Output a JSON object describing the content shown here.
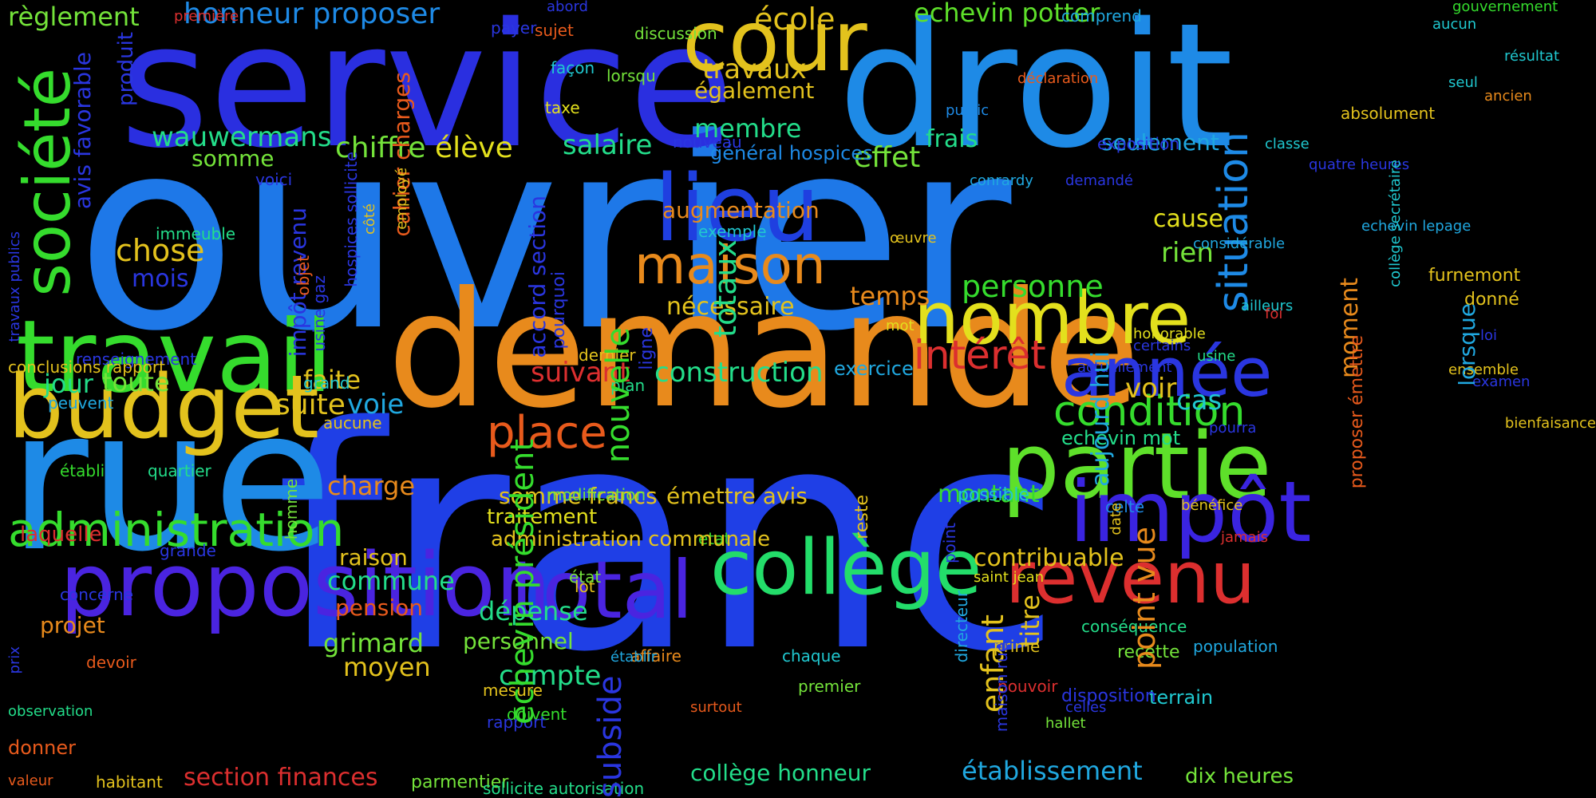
{
  "palette": {
    "background": "#000000",
    "blue": "#1f3fe0",
    "lightblue": "#1e8ae6",
    "orange": "#e88a1c",
    "yellow": "#e3c21d",
    "green": "#35dc2d",
    "lightgreen": "#74e33a",
    "teal": "#23dd8a",
    "cyan": "#20c8d0",
    "red": "#dc2f2f",
    "violet": "#4a24e0"
  },
  "words": [
    {
      "text": "ouvrier",
      "color": "#1e78e8"
    },
    {
      "text": "franc",
      "color": "#1f3fe6"
    },
    {
      "text": "service",
      "color": "#2a2fe0"
    },
    {
      "text": "droit",
      "color": "#1e8ae6"
    },
    {
      "text": "demande",
      "color": "#e88a1c"
    },
    {
      "text": "rue",
      "color": "#1e8ae6"
    },
    {
      "text": "cour",
      "color": "#e3c21d"
    },
    {
      "text": "société",
      "color": "#35dc2d"
    },
    {
      "text": "travail",
      "color": "#35dc2d"
    },
    {
      "text": "budget",
      "color": "#e3c21d"
    },
    {
      "text": "nombre",
      "color": "#e3e01d"
    },
    {
      "text": "année",
      "color": "#2a36e0"
    },
    {
      "text": "lieu",
      "color": "#1f3fe0"
    },
    {
      "text": "partie",
      "color": "#5ee02a"
    },
    {
      "text": "impôt",
      "color": "#3a24e0"
    },
    {
      "text": "collège",
      "color": "#23dd6a"
    },
    {
      "text": "revenu",
      "color": "#dc2f2f"
    },
    {
      "text": "total",
      "color": "#4a24e0"
    },
    {
      "text": "proposition",
      "color": "#4a24e0"
    },
    {
      "text": "administration",
      "color": "#35dc2d"
    },
    {
      "text": "maison",
      "color": "#e88a1c"
    },
    {
      "text": "condition",
      "color": "#35dc2d"
    },
    {
      "text": "intérêt",
      "color": "#dc2f2f"
    },
    {
      "text": "place",
      "color": "#e85a1c"
    },
    {
      "text": "situation",
      "color": "#1e8ae6"
    },
    {
      "text": "honneur proposer",
      "color": "#1e8ae6"
    },
    {
      "text": "école",
      "color": "#e3c21d"
    },
    {
      "text": "echevin potter",
      "color": "#5ee02a"
    },
    {
      "text": "règlement",
      "color": "#74e33a"
    },
    {
      "text": "travaux",
      "color": "#e3c21d"
    },
    {
      "text": "également",
      "color": "#e3c21d"
    },
    {
      "text": "membre",
      "color": "#23dd8a"
    },
    {
      "text": "effet",
      "color": "#74e33a"
    },
    {
      "text": "frais",
      "color": "#23dd8a"
    },
    {
      "text": "seulement",
      "color": "#20a8e0"
    },
    {
      "text": "wauwermans",
      "color": "#23dd8a"
    },
    {
      "text": "chiffre",
      "color": "#74e33a"
    },
    {
      "text": "élève",
      "color": "#e3e01d"
    },
    {
      "text": "salaire",
      "color": "#23dd8a"
    },
    {
      "text": "somme",
      "color": "#74e33a"
    },
    {
      "text": "général hospices",
      "color": "#1e8ae6"
    },
    {
      "text": "augmentation",
      "color": "#e88a1c"
    },
    {
      "text": "cause",
      "color": "#e3e01d"
    },
    {
      "text": "rien",
      "color": "#74e33a"
    },
    {
      "text": "chose",
      "color": "#e3c21d"
    },
    {
      "text": "mois",
      "color": "#2a36e0"
    },
    {
      "text": "temps",
      "color": "#e88a1c"
    },
    {
      "text": "personne",
      "color": "#35dc2d"
    },
    {
      "text": "nécessaire",
      "color": "#e3c21d"
    },
    {
      "text": "construction",
      "color": "#23dd8a"
    },
    {
      "text": "suivant",
      "color": "#dc2f2f"
    },
    {
      "text": "faite",
      "color": "#e3c21d"
    },
    {
      "text": "jour",
      "color": "#23dd8a"
    },
    {
      "text": "toute",
      "color": "#74e33a"
    },
    {
      "text": "suite",
      "color": "#e3c21d"
    },
    {
      "text": "voie",
      "color": "#20a8e0"
    },
    {
      "text": "voir",
      "color": "#e3c21d"
    },
    {
      "text": "cas",
      "color": "#20c8d0"
    },
    {
      "text": "charge",
      "color": "#e88a1c"
    },
    {
      "text": "somme francs",
      "color": "#e3c21d"
    },
    {
      "text": "émettre avis",
      "color": "#e3c21d"
    },
    {
      "text": "montant",
      "color": "#35dc2d"
    },
    {
      "text": "contribuable",
      "color": "#e3c21d"
    },
    {
      "text": "raison",
      "color": "#e3c21d"
    },
    {
      "text": "commune",
      "color": "#23dd8a"
    },
    {
      "text": "pension",
      "color": "#e85a1c"
    },
    {
      "text": "dépense",
      "color": "#23dd8a"
    },
    {
      "text": "projet",
      "color": "#e88a1c"
    },
    {
      "text": "grimard",
      "color": "#74e33a"
    },
    {
      "text": "personnel",
      "color": "#74e33a"
    },
    {
      "text": "moyen",
      "color": "#e3c21d"
    },
    {
      "text": "compte",
      "color": "#23dd8a"
    },
    {
      "text": "section finances",
      "color": "#dc2f2f"
    },
    {
      "text": "collège honneur",
      "color": "#23dd8a"
    },
    {
      "text": "établissement",
      "color": "#20a8e0"
    },
    {
      "text": "dix heures",
      "color": "#74e33a"
    },
    {
      "text": "terrain",
      "color": "#20c8d0"
    },
    {
      "text": "echevin mot",
      "color": "#23dd8a"
    },
    {
      "text": "laquelle",
      "color": "#dc2f2f"
    },
    {
      "text": "donner",
      "color": "#e85a1c"
    },
    {
      "text": "parmentier",
      "color": "#74e33a"
    },
    {
      "text": "sollicite autorisation",
      "color": "#23dd8a"
    },
    {
      "text": "exercice",
      "color": "#20a8e0"
    },
    {
      "text": "possible",
      "color": "#20c8d0"
    },
    {
      "text": "celte",
      "color": "#1e8ae6"
    },
    {
      "text": "bénéfice",
      "color": "#e3c21d"
    },
    {
      "text": "jamais",
      "color": "#dc2f2f"
    },
    {
      "text": "conséquence",
      "color": "#23dd8a"
    },
    {
      "text": "recette",
      "color": "#74e33a"
    },
    {
      "text": "prime",
      "color": "#e3c21d"
    },
    {
      "text": "population",
      "color": "#20a8e0"
    },
    {
      "text": "disposition",
      "color": "#2a36e0"
    },
    {
      "text": "celles",
      "color": "#2a36e0"
    },
    {
      "text": "hallet",
      "color": "#74e33a"
    },
    {
      "text": "saint jean",
      "color": "#e3e01d"
    },
    {
      "text": "pouvoir",
      "color": "#dc2f2f"
    },
    {
      "text": "premier",
      "color": "#74e33a"
    },
    {
      "text": "chaque",
      "color": "#20c8d0"
    },
    {
      "text": "affaire",
      "color": "#e88a1c"
    },
    {
      "text": "surtout",
      "color": "#e85a1c"
    },
    {
      "text": "doivent",
      "color": "#35dc2d"
    },
    {
      "text": "rapport",
      "color": "#2a36e0"
    },
    {
      "text": "mesure",
      "color": "#e3c21d"
    },
    {
      "text": "établir",
      "color": "#20a8e0"
    },
    {
      "text": "lot",
      "color": "#e3c21d"
    },
    {
      "text": "état",
      "color": "#74e33a"
    },
    {
      "text": "etat",
      "color": "#35dc2d"
    },
    {
      "text": "traitement",
      "color": "#e3e01d"
    },
    {
      "text": "administration communale",
      "color": "#e3c21d"
    },
    {
      "text": "modification",
      "color": "#74e33a"
    },
    {
      "text": "grande",
      "color": "#2a36e0"
    },
    {
      "text": "quartier",
      "color": "#23dd8a"
    },
    {
      "text": "établi",
      "color": "#35dc2d"
    },
    {
      "text": "concerne",
      "color": "#2a36e0"
    },
    {
      "text": "devoir",
      "color": "#e85a1c"
    },
    {
      "text": "observation",
      "color": "#23dd8a"
    },
    {
      "text": "valeur",
      "color": "#e85a1c"
    },
    {
      "text": "habitant",
      "color": "#e3c21d"
    },
    {
      "text": "prix",
      "color": "#2a36e0"
    },
    {
      "text": "renseignement",
      "color": "#2a36e0"
    },
    {
      "text": "conclusions rapport",
      "color": "#e3c21d"
    },
    {
      "text": "peuvent",
      "color": "#20a8e0"
    },
    {
      "text": "aucune",
      "color": "#e3c21d"
    },
    {
      "text": "grand",
      "color": "#20c8d0"
    },
    {
      "text": "dernier",
      "color": "#e3c21d"
    },
    {
      "text": "plan",
      "color": "#23dd8a"
    },
    {
      "text": "immeuble",
      "color": "#23dd8a"
    },
    {
      "text": "voici",
      "color": "#2a36e0"
    },
    {
      "text": "exemple",
      "color": "#20c8d0"
    },
    {
      "text": "nouveau",
      "color": "#2a36e0"
    },
    {
      "text": "taxe",
      "color": "#e3e01d"
    },
    {
      "text": "lorsqu",
      "color": "#74e33a"
    },
    {
      "text": "façon",
      "color": "#20c8d0"
    },
    {
      "text": "discussion",
      "color": "#74e33a"
    },
    {
      "text": "sujet",
      "color": "#e85a1c"
    },
    {
      "text": "payer",
      "color": "#2a36e0"
    },
    {
      "text": "abord",
      "color": "#2a36e0"
    },
    {
      "text": "première",
      "color": "#dc2f2f"
    },
    {
      "text": "comprend",
      "color": "#20a8e0"
    },
    {
      "text": "gouvernement",
      "color": "#35dc2d"
    },
    {
      "text": "aucun",
      "color": "#20c8d0"
    },
    {
      "text": "résultat",
      "color": "#20c8d0"
    },
    {
      "text": "seul",
      "color": "#20c8d0"
    },
    {
      "text": "ancien",
      "color": "#e88a1c"
    },
    {
      "text": "déclaration",
      "color": "#e85a1c"
    },
    {
      "text": "public",
      "color": "#1e8ae6"
    },
    {
      "text": "absolument",
      "color": "#e3c21d"
    },
    {
      "text": "exposition",
      "color": "#2a36e0"
    },
    {
      "text": "classe",
      "color": "#20c8d0"
    },
    {
      "text": "quatre heures",
      "color": "#2a36e0"
    },
    {
      "text": "demandé",
      "color": "#2a36e0"
    },
    {
      "text": "conrardy",
      "color": "#20a8e0"
    },
    {
      "text": "echevin lepage",
      "color": "#20a8e0"
    },
    {
      "text": "œuvre",
      "color": "#e3c21d"
    },
    {
      "text": "considérable",
      "color": "#20a8e0"
    },
    {
      "text": "mot",
      "color": "#e3e01d"
    },
    {
      "text": "honorable",
      "color": "#e3e01d"
    },
    {
      "text": "certains",
      "color": "#2a36e0"
    },
    {
      "text": "usine",
      "color": "#23dd8a"
    },
    {
      "text": "actuellement",
      "color": "#2a36e0"
    },
    {
      "text": "ensemble",
      "color": "#e3c21d"
    },
    {
      "text": "examen",
      "color": "#2a36e0"
    },
    {
      "text": "bienfaisance",
      "color": "#e3c21d"
    },
    {
      "text": "pourra",
      "color": "#2a36e0"
    },
    {
      "text": "ailleurs",
      "color": "#20c8d0"
    },
    {
      "text": "foi",
      "color": "#dc2f2f"
    },
    {
      "text": "furnemont",
      "color": "#e3c21d"
    },
    {
      "text": "donné",
      "color": "#e3c21d"
    },
    {
      "text": "loi",
      "color": "#2a36e0"
    },
    {
      "text": "lorsque",
      "color": "#20a8e0"
    },
    {
      "text": "moment",
      "color": "#e88a1c"
    },
    {
      "text": "aujourd hui",
      "color": "#20a8e0"
    },
    {
      "text": "point vue",
      "color": "#e88a1c"
    },
    {
      "text": "enfant",
      "color": "#e3c21d"
    },
    {
      "text": "titre",
      "color": "#e3c21d"
    },
    {
      "text": "subside",
      "color": "#2a36e0"
    },
    {
      "text": "totaux",
      "color": "#23dd8a"
    },
    {
      "text": "nouvelle",
      "color": "#35dc2d"
    },
    {
      "text": "echevin président",
      "color": "#35dc2d"
    },
    {
      "text": "accord section",
      "color": "#2a36e0"
    },
    {
      "text": "pourquoi",
      "color": "#2a36e0"
    },
    {
      "text": "ligne",
      "color": "#2a36e0"
    },
    {
      "text": "reste",
      "color": "#e3c21d"
    },
    {
      "text": "proposer émettre",
      "color": "#e85a1c"
    },
    {
      "text": "collège secrétaire",
      "color": "#20c8d0"
    },
    {
      "text": "cahier charges",
      "color": "#e85a1c"
    },
    {
      "text": "impôt revenu",
      "color": "#2a36e0"
    },
    {
      "text": "objet",
      "color": "#e85a1c"
    },
    {
      "text": "usine gaz",
      "color": "#2a36e0"
    },
    {
      "text": "hospices sollicite",
      "color": "#2a36e0"
    },
    {
      "text": "côté",
      "color": "#e3c21d"
    },
    {
      "text": "employé",
      "color": "#e3c21d"
    },
    {
      "text": "travaux publics",
      "color": "#2a36e0"
    },
    {
      "text": "produit",
      "color": "#2a36e0"
    },
    {
      "text": "avis favorable",
      "color": "#2a36e0"
    },
    {
      "text": "homme",
      "color": "#74e33a"
    },
    {
      "text": "point",
      "color": "#2a36e0"
    },
    {
      "text": "directeur",
      "color": "#20a8e0"
    },
    {
      "text": "maison rue",
      "color": "#2a36e0"
    },
    {
      "text": "date",
      "color": "#e3c21d"
    }
  ]
}
